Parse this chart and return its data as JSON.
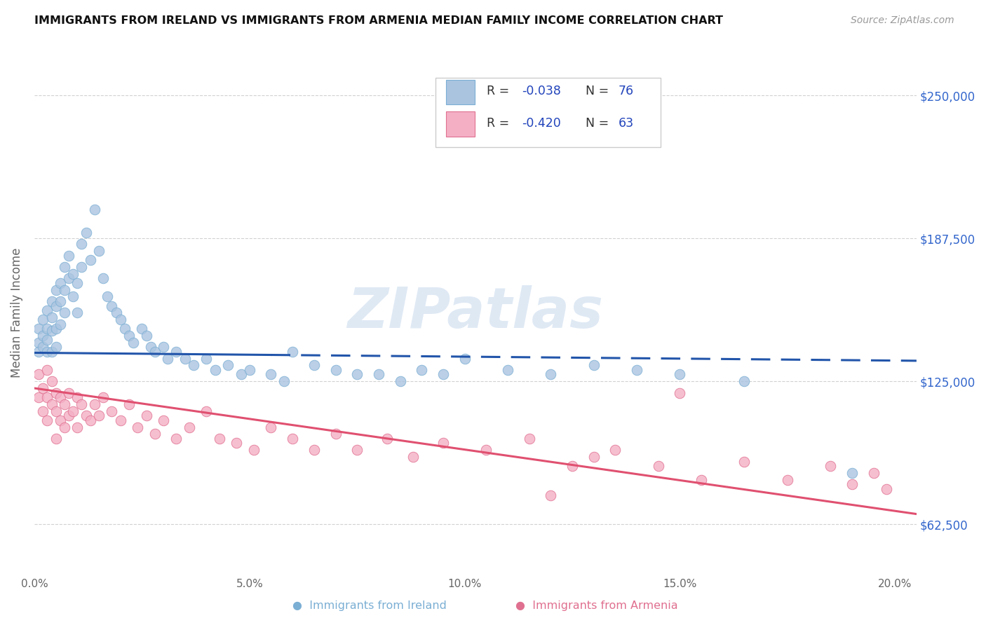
{
  "title": "IMMIGRANTS FROM IRELAND VS IMMIGRANTS FROM ARMENIA MEDIAN FAMILY INCOME CORRELATION CHART",
  "source": "Source: ZipAtlas.com",
  "xlabel_ticks": [
    "0.0%",
    "5.0%",
    "10.0%",
    "15.0%",
    "20.0%"
  ],
  "xlabel_vals": [
    0.0,
    0.05,
    0.1,
    0.15,
    0.2
  ],
  "ylabel": "Median Family Income",
  "ylabel_ticks": [
    62500,
    125000,
    187500,
    250000
  ],
  "ylabel_labels": [
    "$62,500",
    "$125,000",
    "$187,500",
    "$250,000"
  ],
  "xlim": [
    0.0,
    0.205
  ],
  "ylim": [
    42000,
    268000
  ],
  "ireland_color": "#aac4e0",
  "ireland_edge": "#7bafd4",
  "armenia_color": "#f4afc5",
  "armenia_edge": "#e07090",
  "ireland_R": -0.038,
  "ireland_N": 76,
  "armenia_R": -0.42,
  "armenia_N": 63,
  "ireland_line_color": "#2255aa",
  "armenia_line_color": "#e05070",
  "watermark": "ZIPatlas",
  "ireland_scatter_x": [
    0.001,
    0.001,
    0.001,
    0.002,
    0.002,
    0.002,
    0.003,
    0.003,
    0.003,
    0.003,
    0.004,
    0.004,
    0.004,
    0.004,
    0.005,
    0.005,
    0.005,
    0.005,
    0.006,
    0.006,
    0.006,
    0.007,
    0.007,
    0.007,
    0.008,
    0.008,
    0.009,
    0.009,
    0.01,
    0.01,
    0.011,
    0.011,
    0.012,
    0.013,
    0.014,
    0.015,
    0.016,
    0.017,
    0.018,
    0.019,
    0.02,
    0.021,
    0.022,
    0.023,
    0.025,
    0.026,
    0.027,
    0.028,
    0.03,
    0.031,
    0.033,
    0.035,
    0.037,
    0.04,
    0.042,
    0.045,
    0.048,
    0.05,
    0.055,
    0.058,
    0.06,
    0.065,
    0.07,
    0.075,
    0.08,
    0.085,
    0.09,
    0.095,
    0.1,
    0.11,
    0.12,
    0.13,
    0.14,
    0.15,
    0.165,
    0.19
  ],
  "ireland_scatter_y": [
    148000,
    142000,
    138000,
    152000,
    145000,
    140000,
    156000,
    148000,
    143000,
    138000,
    160000,
    153000,
    147000,
    138000,
    165000,
    158000,
    148000,
    140000,
    168000,
    160000,
    150000,
    175000,
    165000,
    155000,
    180000,
    170000,
    172000,
    162000,
    168000,
    155000,
    185000,
    175000,
    190000,
    178000,
    200000,
    182000,
    170000,
    162000,
    158000,
    155000,
    152000,
    148000,
    145000,
    142000,
    148000,
    145000,
    140000,
    138000,
    140000,
    135000,
    138000,
    135000,
    132000,
    135000,
    130000,
    132000,
    128000,
    130000,
    128000,
    125000,
    138000,
    132000,
    130000,
    128000,
    128000,
    125000,
    130000,
    128000,
    135000,
    130000,
    128000,
    132000,
    130000,
    128000,
    125000,
    85000
  ],
  "armenia_scatter_x": [
    0.001,
    0.001,
    0.002,
    0.002,
    0.003,
    0.003,
    0.003,
    0.004,
    0.004,
    0.005,
    0.005,
    0.005,
    0.006,
    0.006,
    0.007,
    0.007,
    0.008,
    0.008,
    0.009,
    0.01,
    0.01,
    0.011,
    0.012,
    0.013,
    0.014,
    0.015,
    0.016,
    0.018,
    0.02,
    0.022,
    0.024,
    0.026,
    0.028,
    0.03,
    0.033,
    0.036,
    0.04,
    0.043,
    0.047,
    0.051,
    0.055,
    0.06,
    0.065,
    0.07,
    0.075,
    0.082,
    0.088,
    0.095,
    0.105,
    0.115,
    0.125,
    0.135,
    0.145,
    0.155,
    0.165,
    0.175,
    0.185,
    0.19,
    0.195,
    0.198,
    0.15,
    0.13,
    0.12
  ],
  "armenia_scatter_y": [
    128000,
    118000,
    122000,
    112000,
    130000,
    118000,
    108000,
    125000,
    115000,
    120000,
    112000,
    100000,
    118000,
    108000,
    115000,
    105000,
    120000,
    110000,
    112000,
    118000,
    105000,
    115000,
    110000,
    108000,
    115000,
    110000,
    118000,
    112000,
    108000,
    115000,
    105000,
    110000,
    102000,
    108000,
    100000,
    105000,
    112000,
    100000,
    98000,
    95000,
    105000,
    100000,
    95000,
    102000,
    95000,
    100000,
    92000,
    98000,
    95000,
    100000,
    88000,
    95000,
    88000,
    82000,
    90000,
    82000,
    88000,
    80000,
    85000,
    78000,
    120000,
    92000,
    75000
  ],
  "ireland_line_x0": 0.0,
  "ireland_line_x1": 0.205,
  "ireland_line_y0": 137500,
  "ireland_line_y1": 134000,
  "armenia_line_x0": 0.0,
  "armenia_line_x1": 0.205,
  "armenia_line_y0": 122000,
  "armenia_line_y1": 67000
}
